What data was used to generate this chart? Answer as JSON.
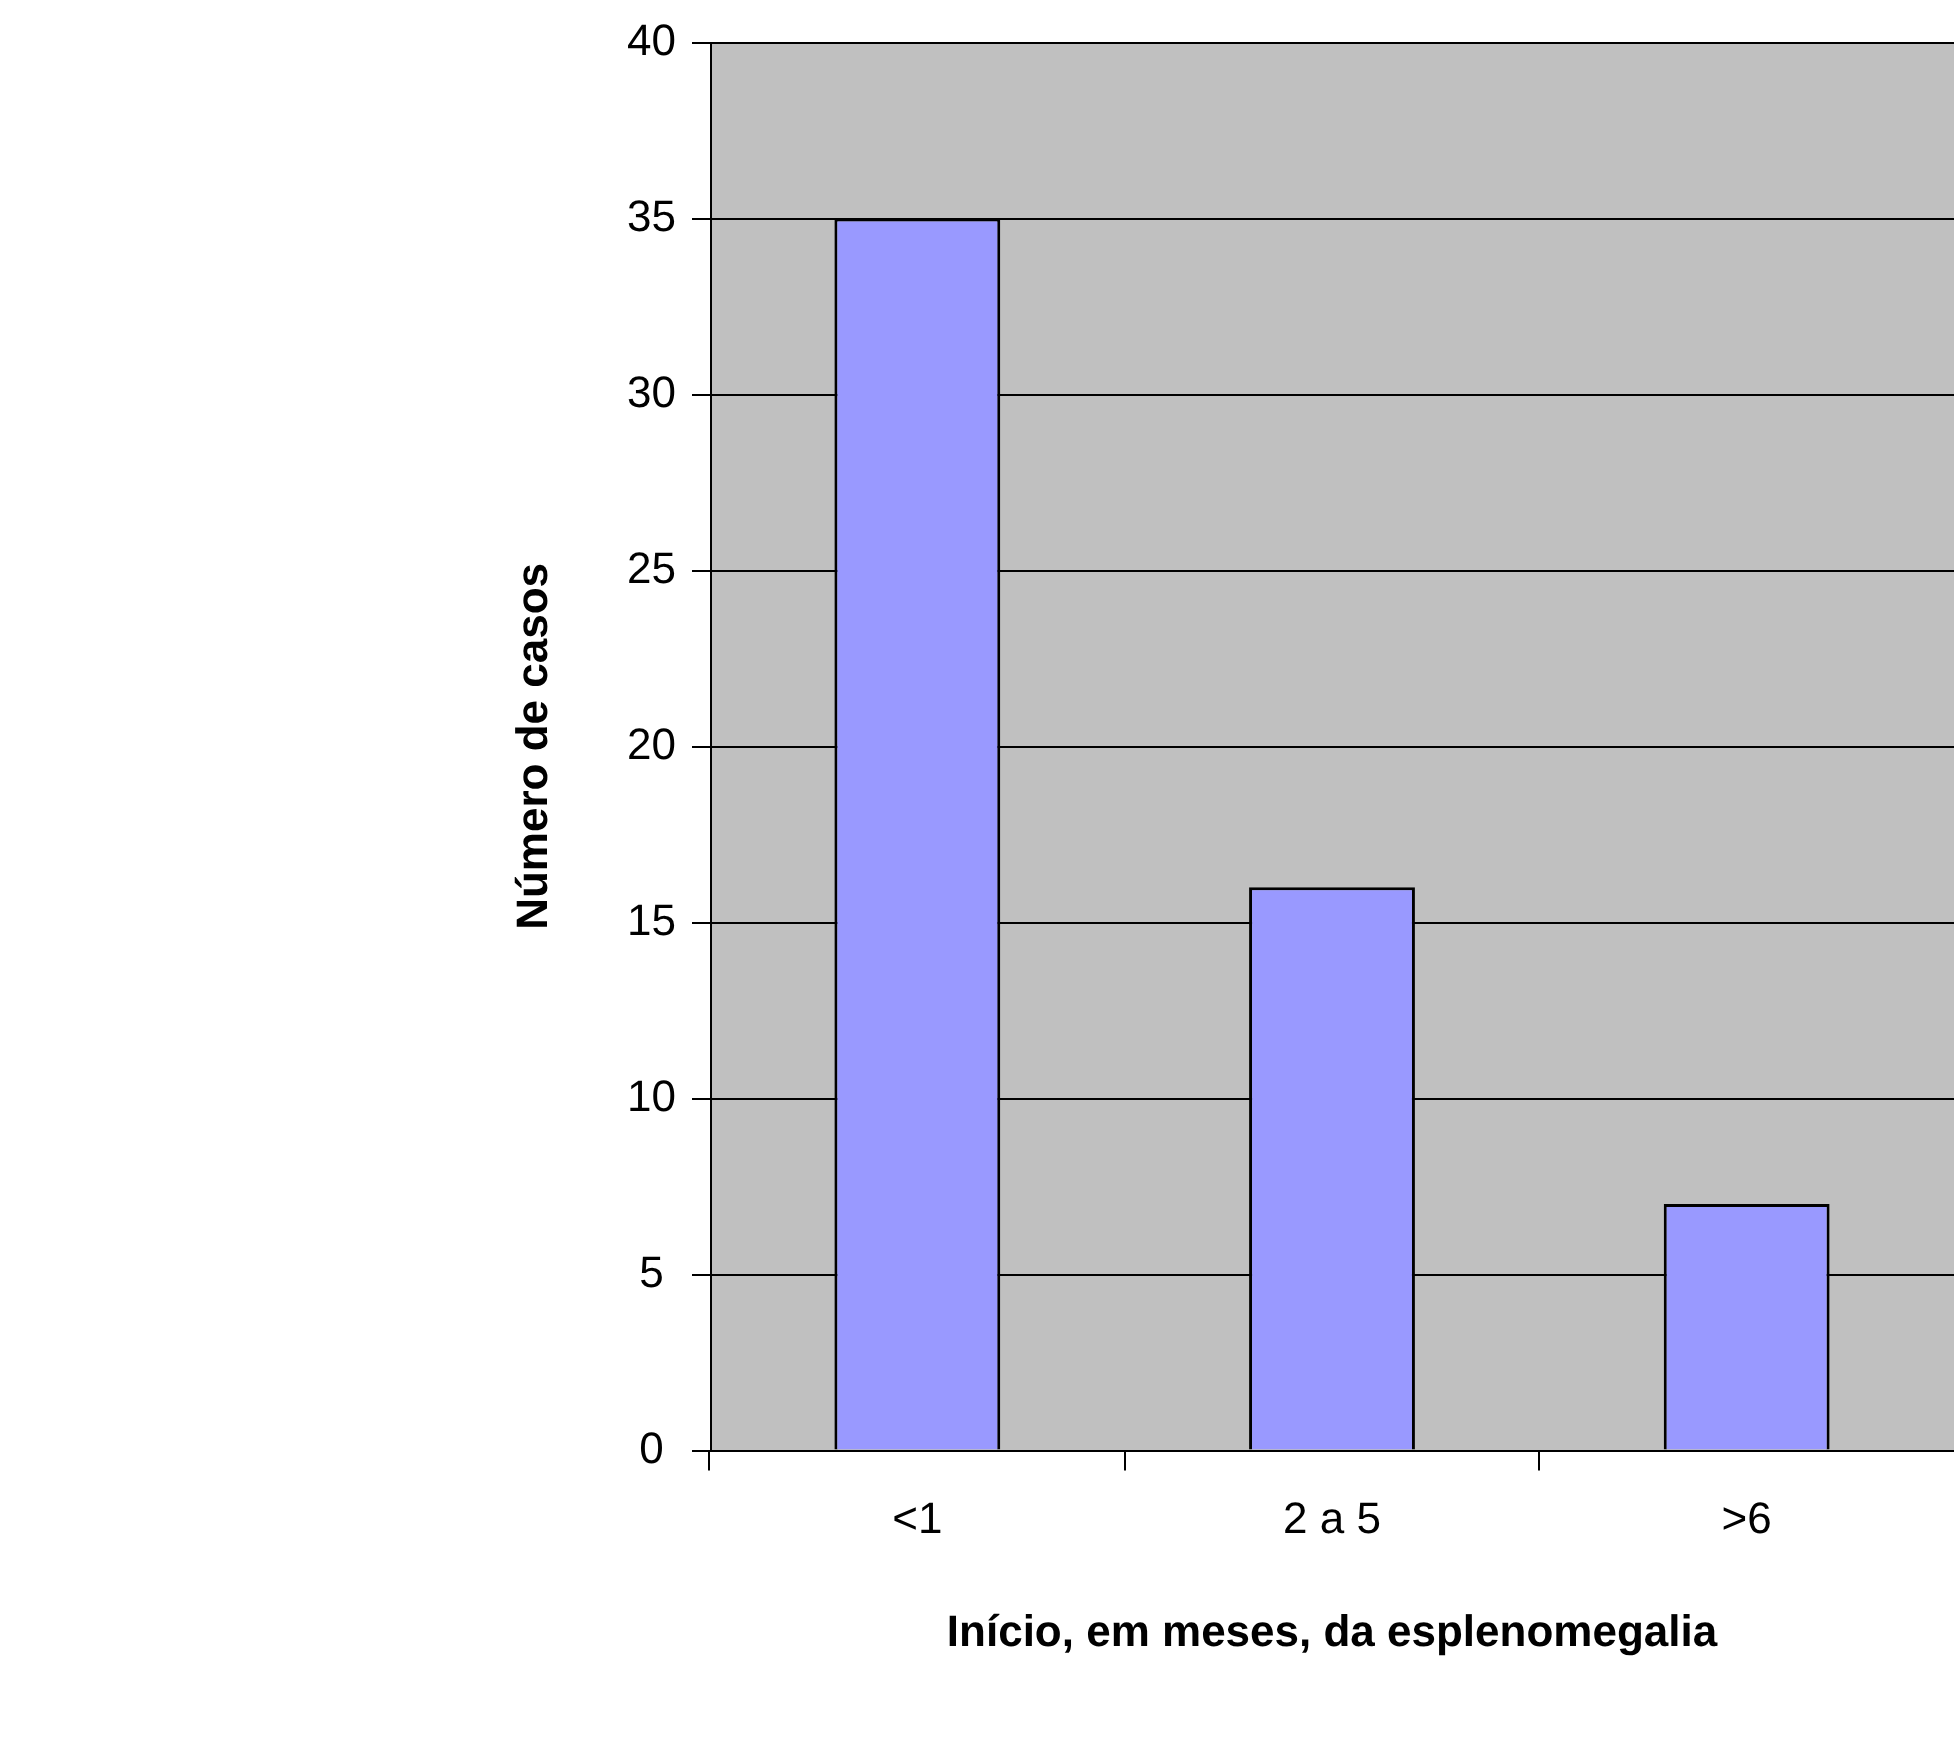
{
  "chart_data": {
    "type": "bar",
    "xlabel": "Início, em meses, da esplenomegalia",
    "ylabel": "Número de casos",
    "categories": [
      "<1",
      "2 a 5",
      ">6"
    ],
    "values": [
      35,
      16,
      7
    ],
    "color": "#9999ff",
    "ylim": [
      0,
      40
    ],
    "yticks": [
      0,
      5,
      10,
      15,
      20,
      25,
      30,
      35,
      40
    ],
    "grid": "y"
  }
}
